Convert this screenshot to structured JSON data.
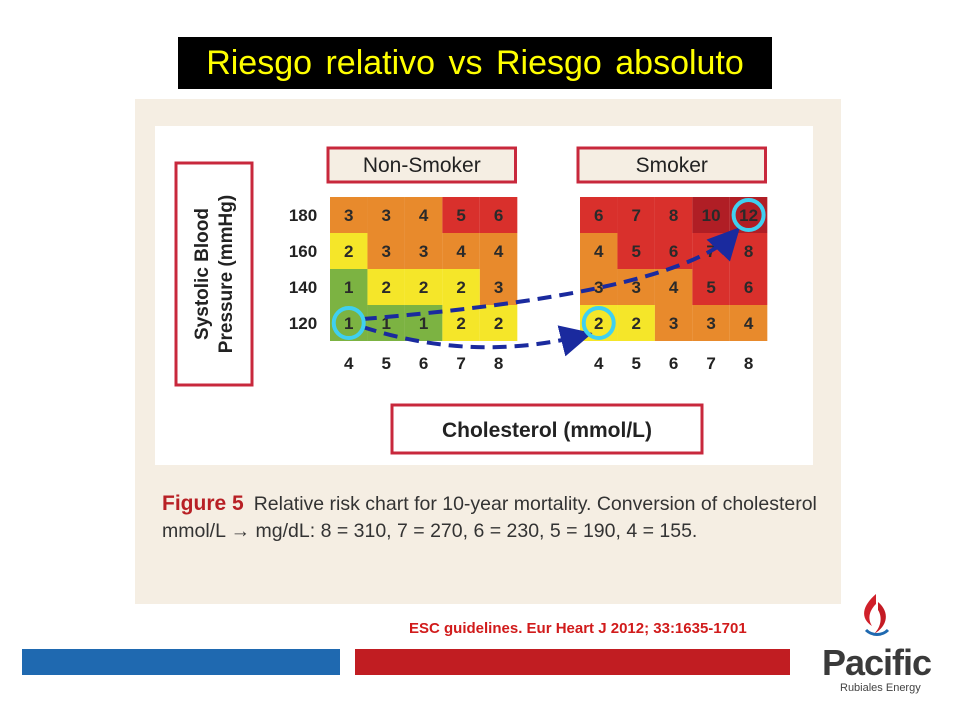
{
  "title": "Riesgo relativo vs Riesgo absoluto",
  "chart_data": {
    "type": "heatmap",
    "yaxis_label_line1": "Systolic Blood",
    "yaxis_label_line2": "Pressure (mmHg)",
    "xaxis_label": "Cholesterol (mmol/L)",
    "rows": [
      "180",
      "160",
      "140",
      "120"
    ],
    "cols": [
      "4",
      "5",
      "6",
      "7",
      "8"
    ],
    "panels": [
      {
        "name": "Non-Smoker",
        "values": [
          [
            3,
            3,
            4,
            5,
            6
          ],
          [
            2,
            3,
            3,
            4,
            4
          ],
          [
            1,
            2,
            2,
            2,
            3
          ],
          [
            1,
            1,
            1,
            2,
            2
          ]
        ]
      },
      {
        "name": "Smoker",
        "values": [
          [
            6,
            7,
            8,
            10,
            12
          ],
          [
            4,
            5,
            6,
            7,
            8
          ],
          [
            3,
            3,
            4,
            5,
            6
          ],
          [
            2,
            2,
            3,
            3,
            4
          ]
        ]
      }
    ],
    "colors": {
      "1": "#7cb342",
      "2": "#f5e629",
      "3": "#e88a2c",
      "4": "#e88a2c",
      "5": "#d9302c",
      "6": "#d9302c",
      "7": "#d9302c",
      "8": "#d9302c",
      "10": "#b01e25",
      "12": "#b01e25"
    },
    "highlight_circle_color": "#3fd0f0",
    "arrow_color": "#1a2a9e"
  },
  "caption": {
    "figure_label": "Figure 5",
    "text": "Relative risk chart for 10-year mortality. Conversion of cholesterol mmol/L → mg/dL: 8 = 310, 7 = 270, 6 = 230, 5 = 190, 4 = 155."
  },
  "citation": "ESC guidelines. Eur Heart J 2012; 33:1635-1701",
  "logo": {
    "word": "Pacific",
    "sub": "Rubiales Energy"
  }
}
